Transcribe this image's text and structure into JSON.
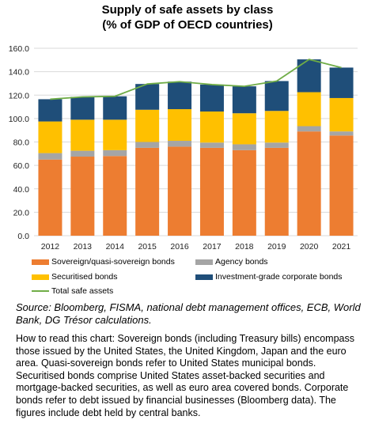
{
  "title": {
    "line1": "Supply of safe assets by class",
    "line2": "(% of GDP of OECD countries)"
  },
  "colors": {
    "sovereign": "#ED7D31",
    "agency": "#A5A5A5",
    "securitised": "#FFC000",
    "corporate": "#1F4E79",
    "total": "#70AD47",
    "grid": "#D9D9D9"
  },
  "chart_data": {
    "type": "bar",
    "stacked": true,
    "categories": [
      "2012",
      "2013",
      "2014",
      "2015",
      "2016",
      "2017",
      "2018",
      "2019",
      "2020",
      "2021"
    ],
    "ylim": [
      0,
      160
    ],
    "yticks": [
      "0.0",
      "20.0",
      "40.0",
      "60.0",
      "80.0",
      "100.0",
      "120.0",
      "140.0",
      "160.0"
    ],
    "grid": true,
    "legend_position": "bottom",
    "series": [
      {
        "name": "Sovereign/quasi-sovereign bonds",
        "color_key": "sovereign",
        "values": [
          65,
          67.5,
          68,
          75,
          76,
          75,
          73,
          75,
          89,
          85.5
        ]
      },
      {
        "name": "Agency bonds",
        "color_key": "agency",
        "values": [
          5.5,
          5,
          5,
          5,
          5,
          4.5,
          5,
          4.5,
          4.5,
          3.5
        ]
      },
      {
        "name": "Securitised bonds",
        "color_key": "securitised",
        "values": [
          27,
          26.5,
          26,
          27.5,
          27,
          26.5,
          26.5,
          27,
          29,
          28.5
        ]
      },
      {
        "name": "Investment-grade corporate bonds",
        "color_key": "corporate",
        "values": [
          19,
          19.5,
          20,
          22,
          23.5,
          23,
          23,
          25.5,
          28,
          26
        ]
      }
    ],
    "line": {
      "name": "Total safe assets",
      "color_key": "total",
      "values": [
        116.5,
        118.5,
        119,
        129.5,
        131.5,
        129,
        127.5,
        132,
        150.5,
        143.5
      ]
    }
  },
  "source": "Source: Bloomberg, FISMA, national debt management offices, ECB, World Bank, DG Trésor calculations.",
  "how_to_read": "How to read this chart: Sovereign bonds (including Treasury bills) encompass those issued by the United States, the United Kingdom, Japan and the euro area. Quasi-sovereign bonds refer to United States municipal bonds. Securitised bonds comprise United States asset-backed securities and mortgage-backed securities, as well as euro area covered bonds. Corporate bonds refer to debt issued by financial businesses (Bloomberg data). The figures include debt held by central banks."
}
